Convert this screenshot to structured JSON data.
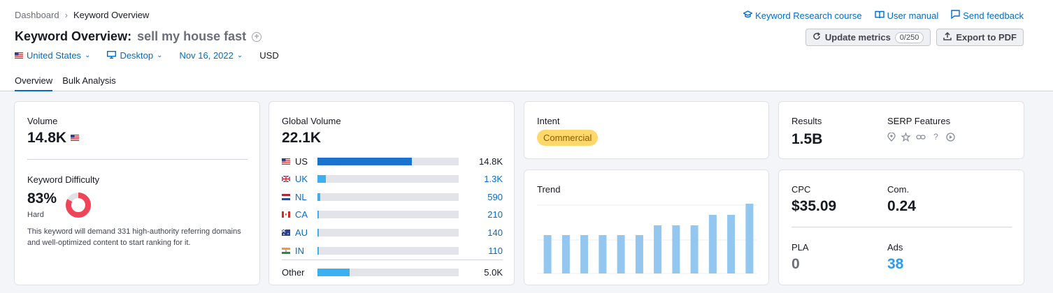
{
  "breadcrumb": {
    "root": "Dashboard",
    "current": "Keyword Overview"
  },
  "links": [
    "Keyword Research course",
    "User manual",
    "Send feedback"
  ],
  "title": {
    "label": "Keyword Overview:",
    "keyword": "sell my house fast"
  },
  "buttons": {
    "update": "Update metrics",
    "update_count": "0/250",
    "export": "Export to PDF"
  },
  "filters": {
    "country": "United States",
    "device": "Desktop",
    "date": "Nov 16, 2022",
    "currency": "USD"
  },
  "tabs": [
    "Overview",
    "Bulk Analysis"
  ],
  "volume": {
    "label": "Volume",
    "value": "14.8K"
  },
  "kd": {
    "label": "Keyword Difficulty",
    "value": "83%",
    "level": "Hard",
    "percent": 83,
    "desc": "This keyword will demand 331 high-authority referring domains and well-optimized content to start ranking for it."
  },
  "global": {
    "label": "Global Volume",
    "value": "22.1K",
    "rows": [
      {
        "code": "US",
        "value": "14.8K",
        "share": 0.67,
        "color": "#1a73cf"
      },
      {
        "code": "UK",
        "value": "1.3K",
        "share": 0.06,
        "color": "#3ab0f0"
      },
      {
        "code": "NL",
        "value": "590",
        "share": 0.02,
        "color": "#3ab0f0"
      },
      {
        "code": "CA",
        "value": "210",
        "share": 0.01,
        "color": "#3ab0f0"
      },
      {
        "code": "AU",
        "value": "140",
        "share": 0.01,
        "color": "#3ab0f0"
      },
      {
        "code": "IN",
        "value": "110",
        "share": 0.01,
        "color": "#3ab0f0"
      }
    ],
    "other": {
      "label": "Other",
      "value": "5.0K",
      "share": 0.23,
      "color": "#3ab0f0"
    }
  },
  "intent": {
    "label": "Intent",
    "value": "Commercial"
  },
  "trend": {
    "label": "Trend",
    "values": [
      0.55,
      0.55,
      0.55,
      0.55,
      0.55,
      0.55,
      0.69,
      0.69,
      0.69,
      0.84,
      0.84,
      1.0
    ]
  },
  "results": {
    "label": "Results",
    "value": "1.5B"
  },
  "serp": {
    "label": "SERP Features"
  },
  "cpc": {
    "label": "CPC",
    "value": "$35.09"
  },
  "com": {
    "label": "Com.",
    "value": "0.24"
  },
  "pla": {
    "label": "PLA",
    "value": "0"
  },
  "ads": {
    "label": "Ads",
    "value": "38"
  }
}
